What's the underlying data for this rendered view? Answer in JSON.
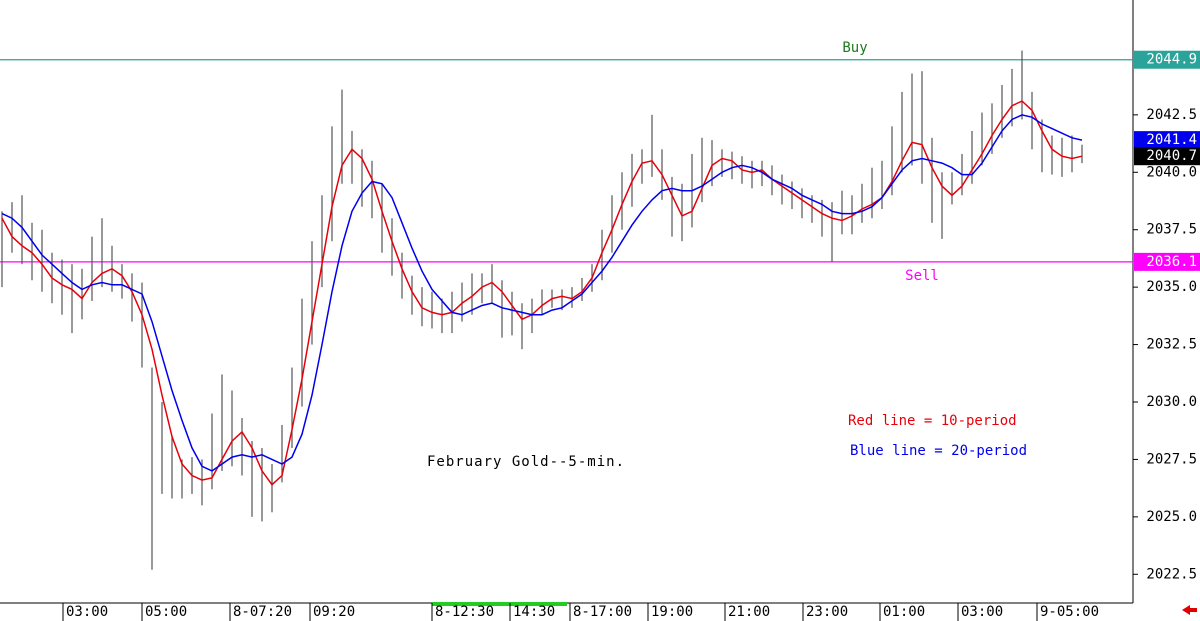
{
  "chart_data": {
    "type": "ohlc",
    "x": [
      0,
      1,
      2,
      3,
      4,
      5,
      6,
      7,
      8,
      9,
      10,
      11,
      12,
      13,
      14,
      15,
      16,
      17,
      18,
      19,
      20,
      21,
      22,
      23,
      24,
      25,
      26,
      27,
      28,
      29,
      30,
      31,
      32,
      33,
      34,
      35,
      36,
      37,
      38,
      39,
      40,
      41,
      42,
      43,
      44,
      45,
      46,
      47,
      48,
      49,
      50,
      51,
      52,
      53,
      54,
      55,
      56,
      57,
      58,
      59,
      60,
      61,
      62,
      63,
      64,
      65,
      66,
      67,
      68,
      69,
      70,
      71,
      72,
      73,
      74,
      75,
      76,
      77,
      78,
      79,
      80,
      81,
      82,
      83,
      84,
      85,
      86,
      87,
      88,
      89,
      90,
      91,
      92,
      93,
      94,
      95,
      96,
      97,
      98,
      99,
      100,
      101,
      102,
      103,
      104,
      105,
      106,
      107,
      108
    ],
    "bars": {
      "color": "#555555",
      "high": [
        2038.3,
        2038.7,
        2039.0,
        2037.8,
        2037.5,
        2036.5,
        2036.2,
        2036.0,
        2035.8,
        2037.2,
        2038.0,
        2036.8,
        2036.0,
        2035.6,
        2035.2,
        2031.5,
        2030.0,
        2028.5,
        2027.5,
        2027.6,
        2027.5,
        2029.5,
        2031.2,
        2030.5,
        2029.3,
        2028.3,
        2028.0,
        2027.3,
        2029.0,
        2031.5,
        2034.5,
        2037.0,
        2039.0,
        2042.0,
        2043.6,
        2041.8,
        2041.0,
        2040.5,
        2039.5,
        2038.0,
        2036.5,
        2035.5,
        2035.0,
        2034.8,
        2034.5,
        2034.8,
        2035.2,
        2035.6,
        2035.6,
        2036.0,
        2035.3,
        2034.8,
        2034.3,
        2034.5,
        2034.9,
        2034.9,
        2034.9,
        2035.0,
        2035.4,
        2036.0,
        2037.5,
        2039.0,
        2040.0,
        2040.8,
        2041.0,
        2042.5,
        2041.0,
        2039.8,
        2039.5,
        2040.8,
        2041.5,
        2041.4,
        2041.0,
        2040.9,
        2040.7,
        2040.5,
        2040.5,
        2040.3,
        2039.9,
        2039.6,
        2039.3,
        2039.0,
        2038.8,
        2038.7,
        2039.2,
        2039.0,
        2039.5,
        2040.2,
        2040.5,
        2042.0,
        2043.5,
        2044.3,
        2044.4,
        2041.5,
        2040.0,
        2040.0,
        2040.8,
        2041.8,
        2042.6,
        2043.0,
        2043.8,
        2044.5,
        2045.3,
        2043.5,
        2042.3,
        2041.6,
        2041.5,
        2041.6,
        2041.2
      ],
      "low": [
        2035.0,
        2036.5,
        2036.0,
        2035.3,
        2034.8,
        2034.3,
        2033.8,
        2033.0,
        2033.6,
        2034.4,
        2035.0,
        2034.8,
        2034.5,
        2033.5,
        2031.5,
        2022.7,
        2026.0,
        2025.8,
        2025.8,
        2026.0,
        2025.5,
        2026.2,
        2027.0,
        2027.2,
        2026.8,
        2025.0,
        2024.8,
        2025.2,
        2026.5,
        2028.0,
        2029.8,
        2032.5,
        2035.0,
        2037.0,
        2039.5,
        2039.5,
        2038.5,
        2038.0,
        2036.5,
        2035.5,
        2034.5,
        2033.8,
        2033.3,
        2033.2,
        2033.0,
        2033.0,
        2033.5,
        2033.8,
        2034.3,
        2034.3,
        2032.8,
        2032.9,
        2032.3,
        2033.0,
        2033.8,
        2034.1,
        2034.0,
        2034.1,
        2034.4,
        2034.8,
        2035.3,
        2036.5,
        2037.5,
        2038.5,
        2039.5,
        2039.8,
        2038.8,
        2037.2,
        2037.0,
        2037.6,
        2038.7,
        2039.4,
        2039.8,
        2039.7,
        2039.5,
        2039.3,
        2039.4,
        2039.0,
        2038.6,
        2038.4,
        2038.0,
        2037.8,
        2037.2,
        2036.1,
        2037.3,
        2037.3,
        2037.8,
        2038.0,
        2038.4,
        2039.0,
        2040.0,
        2040.3,
        2039.5,
        2037.8,
        2037.1,
        2038.6,
        2039.0,
        2039.5,
        2040.3,
        2040.8,
        2041.5,
        2042.0,
        2042.3,
        2041.0,
        2040.0,
        2039.9,
        2039.8,
        2040.0,
        2040.4
      ]
    },
    "series": [
      {
        "color": "#e8000b",
        "values": [
          2038.0,
          2037.2,
          2036.8,
          2036.5,
          2036.0,
          2035.4,
          2035.1,
          2034.9,
          2034.5,
          2035.2,
          2035.6,
          2035.8,
          2035.5,
          2034.8,
          2033.8,
          2032.3,
          2030.3,
          2028.5,
          2027.3,
          2026.8,
          2026.6,
          2026.7,
          2027.5,
          2028.3,
          2028.7,
          2028.0,
          2027.0,
          2026.4,
          2026.8,
          2028.8,
          2031.0,
          2033.5,
          2036.0,
          2038.5,
          2040.3,
          2041.0,
          2040.6,
          2039.7,
          2038.3,
          2037.0,
          2035.8,
          2034.8,
          2034.1,
          2033.9,
          2033.8,
          2033.9,
          2034.3,
          2034.6,
          2035.0,
          2035.2,
          2034.8,
          2034.2,
          2033.6,
          2033.8,
          2034.2,
          2034.5,
          2034.6,
          2034.5,
          2034.8,
          2035.4,
          2036.5,
          2037.5,
          2038.6,
          2039.6,
          2040.4,
          2040.5,
          2039.9,
          2039.0,
          2038.1,
          2038.3,
          2039.3,
          2040.3,
          2040.6,
          2040.5,
          2040.1,
          2040.0,
          2040.1,
          2039.7,
          2039.4,
          2039.1,
          2038.8,
          2038.5,
          2038.2,
          2038.0,
          2037.9,
          2038.1,
          2038.4,
          2038.6,
          2038.9,
          2039.6,
          2040.5,
          2041.3,
          2041.2,
          2040.2,
          2039.4,
          2039.0,
          2039.4,
          2040.1,
          2040.8,
          2041.6,
          2042.3,
          2042.9,
          2043.1,
          2042.7,
          2041.8,
          2041.0,
          2040.7,
          2040.6,
          2040.7
        ]
      },
      {
        "color": "#0000ee",
        "values": [
          2038.2,
          2038.0,
          2037.6,
          2037.0,
          2036.4,
          2036.0,
          2035.6,
          2035.2,
          2034.9,
          2035.1,
          2035.2,
          2035.1,
          2035.1,
          2034.9,
          2034.7,
          2033.5,
          2032.0,
          2030.5,
          2029.2,
          2028.0,
          2027.2,
          2027.0,
          2027.3,
          2027.6,
          2027.7,
          2027.6,
          2027.7,
          2027.5,
          2027.3,
          2027.6,
          2028.6,
          2030.3,
          2032.5,
          2034.8,
          2036.8,
          2038.3,
          2039.1,
          2039.6,
          2039.5,
          2038.9,
          2037.8,
          2036.7,
          2035.7,
          2034.9,
          2034.4,
          2033.9,
          2033.8,
          2034.0,
          2034.2,
          2034.3,
          2034.1,
          2034.0,
          2033.9,
          2033.8,
          2033.8,
          2034.0,
          2034.1,
          2034.4,
          2034.7,
          2035.2,
          2035.7,
          2036.3,
          2037.0,
          2037.7,
          2038.3,
          2038.8,
          2039.2,
          2039.3,
          2039.2,
          2039.2,
          2039.4,
          2039.7,
          2040.0,
          2040.2,
          2040.3,
          2040.2,
          2040.0,
          2039.7,
          2039.5,
          2039.3,
          2039.0,
          2038.8,
          2038.6,
          2038.3,
          2038.2,
          2038.2,
          2038.3,
          2038.5,
          2038.9,
          2039.5,
          2040.1,
          2040.5,
          2040.6,
          2040.5,
          2040.4,
          2040.2,
          2039.9,
          2039.9,
          2040.4,
          2041.1,
          2041.8,
          2042.3,
          2042.5,
          2042.4,
          2042.1,
          2041.9,
          2041.7,
          2041.5,
          2041.4
        ]
      }
    ],
    "hlines": [
      {
        "label": "Buy",
        "value": 2044.9,
        "color": "#2aa39a",
        "label_color": "#1e7a1e"
      },
      {
        "label": "Sell",
        "value": 2036.1,
        "color": "#ff00ff",
        "label_color": "#ff00ff"
      }
    ],
    "last_price": 2040.7,
    "annotations": [
      {
        "text": "February Gold--5-min.",
        "color": "#000000"
      },
      {
        "text": "Red line = 10-period",
        "color": "#e8000b"
      },
      {
        "text": "Blue line = 20-period",
        "color": "#0000ee"
      }
    ],
    "xlim": [
      0,
      113
    ],
    "xticks": [
      {
        "value": 6.3,
        "label": "03:00"
      },
      {
        "value": 14.2,
        "label": "05:00"
      },
      {
        "value": 23.0,
        "label": "8-07:20"
      },
      {
        "value": 31.0,
        "label": "09:20"
      },
      {
        "value": 43.2,
        "label": "8-12:30"
      },
      {
        "value": 51.0,
        "label": "14:30"
      },
      {
        "value": 57.0,
        "label": "8-17:00"
      },
      {
        "value": 64.8,
        "label": "19:00"
      },
      {
        "value": 72.5,
        "label": "21:00"
      },
      {
        "value": 80.3,
        "label": "23:00"
      },
      {
        "value": 88.0,
        "label": "01:00"
      },
      {
        "value": 95.8,
        "label": "03:00"
      },
      {
        "value": 103.7,
        "label": "9-05:00"
      }
    ],
    "ylim": [
      2021.25,
      2047.5
    ],
    "yticks": [
      2022.5,
      {
        "value": 2025,
        "label": "2025.0"
      },
      2027.5,
      {
        "value": 2030,
        "label": "2030.0"
      },
      2032.5,
      {
        "value": 2035,
        "label": "2035.0"
      },
      2037.5,
      {
        "value": 2040,
        "label": "2040.0"
      },
      2042.5
    ]
  }
}
